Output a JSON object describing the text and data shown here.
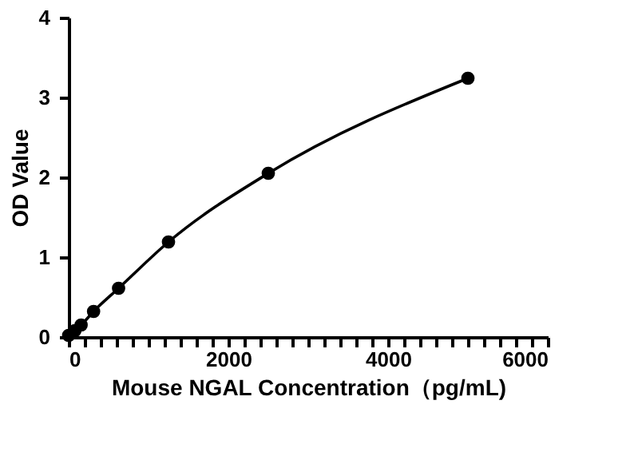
{
  "chart_data": {
    "type": "scatter",
    "xlabel": "Mouse NGAL Concentration（pg/mL)",
    "ylabel": "OD Value",
    "xlim": [
      0,
      6000
    ],
    "ylim": [
      0,
      4
    ],
    "xticks": [
      0,
      {
        "value": 200,
        "label": null
      },
      {
        "value": 400,
        "label": null
      },
      {
        "value": 600,
        "label": null
      },
      {
        "value": 800,
        "label": null
      },
      {
        "value": 1000,
        "label": null
      },
      {
        "value": 1200,
        "label": null
      },
      {
        "value": 1400,
        "label": null
      },
      {
        "value": 1600,
        "label": null
      },
      {
        "value": 1800,
        "label": null
      },
      2000,
      {
        "value": 2200,
        "label": null
      },
      {
        "value": 2400,
        "label": null
      },
      {
        "value": 2600,
        "label": null
      },
      {
        "value": 2800,
        "label": null
      },
      {
        "value": 3000,
        "label": null
      },
      {
        "value": 3200,
        "label": null
      },
      {
        "value": 3400,
        "label": null
      },
      {
        "value": 3600,
        "label": null
      },
      {
        "value": 3800,
        "label": null
      },
      4000,
      {
        "value": 4200,
        "label": null
      },
      {
        "value": 4400,
        "label": null
      },
      {
        "value": 4600,
        "label": null
      },
      {
        "value": 4800,
        "label": null
      },
      {
        "value": 5000,
        "label": null
      },
      {
        "value": 5200,
        "label": null
      },
      {
        "value": 5400,
        "label": null
      },
      {
        "value": 5600,
        "label": null
      },
      {
        "value": 5800,
        "label": null
      },
      6000
    ],
    "yticks": [
      0,
      1,
      2,
      3,
      4
    ],
    "grid": false,
    "series": [
      {
        "marker": "circle",
        "color": "#000000",
        "x": [
          0,
          78,
          156,
          312,
          625,
          1250,
          2500,
          5000
        ],
        "values": [
          0.02,
          0.08,
          0.15,
          0.32,
          0.61,
          1.19,
          2.05,
          3.24
        ]
      },
      {
        "type": "line",
        "marker": "none",
        "line_style": "solid",
        "color": "#000000",
        "x": [
          0,
          78,
          156,
          312,
          625,
          1250,
          2500,
          5000
        ],
        "values": [
          0.02,
          0.08,
          0.15,
          0.32,
          0.61,
          1.19,
          2.05,
          3.24
        ]
      }
    ]
  }
}
